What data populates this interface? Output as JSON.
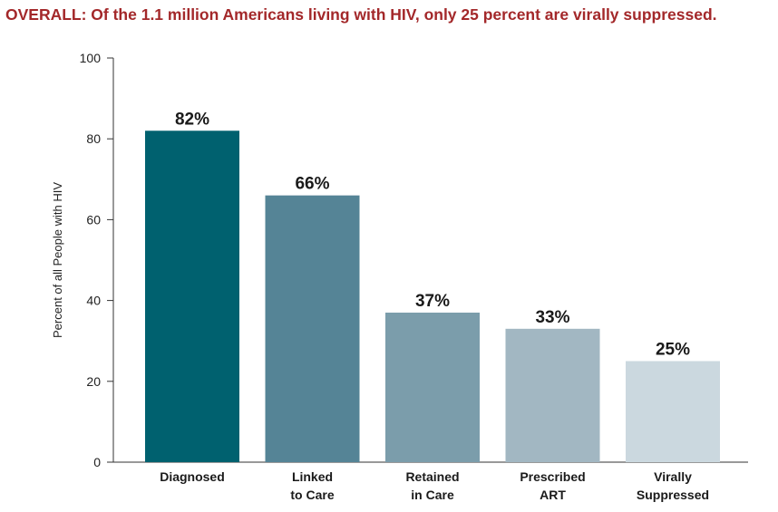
{
  "chart_data": {
    "type": "bar",
    "title": "OVERALL: Of the 1.1 million Americans living with HIV, only 25 percent are virally suppressed.",
    "ylabel": "Percent of all People with HIV",
    "xlabel": "",
    "ylim": [
      0,
      100
    ],
    "yticks": [
      "0",
      "20",
      "40",
      "60",
      "80",
      "100"
    ],
    "grid": false,
    "categories": [
      [
        "Diagnosed"
      ],
      [
        "Linked",
        "to Care"
      ],
      [
        "Retained",
        "in Care"
      ],
      [
        "Prescribed",
        "ART"
      ],
      [
        "Virally",
        "Suppressed"
      ]
    ],
    "values": [
      82,
      66,
      37,
      33,
      25
    ],
    "data_labels": [
      "82%",
      "66%",
      "37%",
      "33%",
      "25%"
    ],
    "colors": [
      "#00616f",
      "#558496",
      "#7b9dab",
      "#a2b7c2",
      "#cbd8df"
    ]
  }
}
